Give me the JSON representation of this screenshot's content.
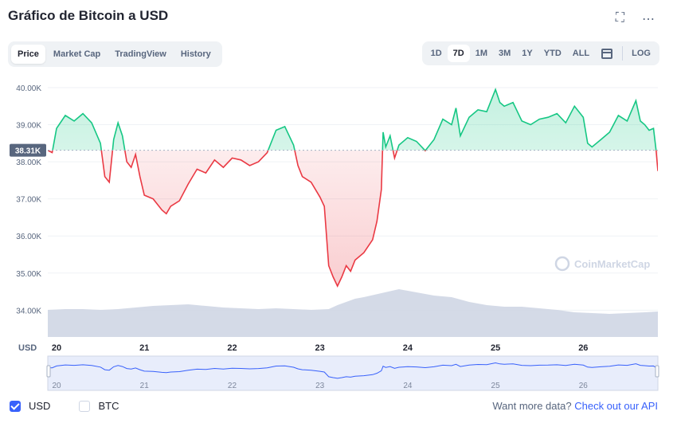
{
  "title": "Gráfico de Bitcoin a USD",
  "tabs": [
    "Price",
    "Market Cap",
    "TradingView",
    "History"
  ],
  "ranges": [
    "1D",
    "7D",
    "1M",
    "3M",
    "1Y",
    "YTD",
    "ALL"
  ],
  "log_label": "LOG",
  "icons": {
    "fullscreen": "fullscreen-icon",
    "more": "more-icon",
    "calendar": "calendar-icon"
  },
  "currency_label": "USD",
  "watermark": "CoinMarketCap",
  "legend": {
    "usd": "USD",
    "btc": "BTC"
  },
  "more_data": {
    "text": "Want more data?",
    "link": "Check out our API"
  },
  "colors": {
    "up": "#16c784",
    "down": "#ea3943",
    "accent": "#3861fb",
    "volume": "#cfd6e4"
  },
  "chart_data": {
    "type": "line",
    "reference_label": "38.31K",
    "reference_value": 38310,
    "ylim": [
      33600,
      40300
    ],
    "y_ticks": [
      "34.00K",
      "35.00K",
      "36.00K",
      "37.00K",
      "38.00K",
      "39.00K",
      "40.00K"
    ],
    "y_tick_values": [
      34000,
      35000,
      36000,
      37000,
      38000,
      39000,
      40000
    ],
    "x_ticks": [
      "20",
      "21",
      "22",
      "23",
      "24",
      "25",
      "26"
    ],
    "x_tick_positions": [
      0.5,
      1.5,
      2.5,
      3.5,
      4.5,
      5.5,
      6.5
    ],
    "x_range": [
      0.4,
      7.35
    ],
    "series": [
      {
        "values": [
          [
            0.4,
            38310
          ],
          [
            0.45,
            38250
          ],
          [
            0.5,
            38900
          ],
          [
            0.6,
            39250
          ],
          [
            0.7,
            39100
          ],
          [
            0.8,
            39300
          ],
          [
            0.9,
            39050
          ],
          [
            1.0,
            38500
          ],
          [
            1.05,
            37600
          ],
          [
            1.1,
            37450
          ],
          [
            1.15,
            38600
          ],
          [
            1.2,
            39050
          ],
          [
            1.25,
            38700
          ],
          [
            1.3,
            38000
          ],
          [
            1.35,
            37850
          ],
          [
            1.4,
            38200
          ],
          [
            1.45,
            37600
          ],
          [
            1.5,
            37100
          ],
          [
            1.6,
            37000
          ],
          [
            1.7,
            36700
          ],
          [
            1.75,
            36600
          ],
          [
            1.8,
            36800
          ],
          [
            1.9,
            36950
          ],
          [
            2.0,
            37400
          ],
          [
            2.1,
            37800
          ],
          [
            2.2,
            37700
          ],
          [
            2.3,
            38050
          ],
          [
            2.4,
            37850
          ],
          [
            2.5,
            38100
          ],
          [
            2.6,
            38050
          ],
          [
            2.7,
            37900
          ],
          [
            2.8,
            38000
          ],
          [
            2.9,
            38250
          ],
          [
            3.0,
            38850
          ],
          [
            3.1,
            38950
          ],
          [
            3.15,
            38700
          ],
          [
            3.2,
            38450
          ],
          [
            3.25,
            37900
          ],
          [
            3.3,
            37600
          ],
          [
            3.4,
            37450
          ],
          [
            3.5,
            37050
          ],
          [
            3.55,
            36800
          ],
          [
            3.6,
            35200
          ],
          [
            3.65,
            34900
          ],
          [
            3.7,
            34650
          ],
          [
            3.75,
            34900
          ],
          [
            3.8,
            35200
          ],
          [
            3.85,
            35050
          ],
          [
            3.9,
            35350
          ],
          [
            4.0,
            35550
          ],
          [
            4.1,
            35900
          ],
          [
            4.15,
            36400
          ],
          [
            4.2,
            37250
          ],
          [
            4.22,
            38800
          ],
          [
            4.25,
            38400
          ],
          [
            4.3,
            38700
          ],
          [
            4.35,
            38100
          ],
          [
            4.4,
            38450
          ],
          [
            4.5,
            38650
          ],
          [
            4.6,
            38550
          ],
          [
            4.7,
            38300
          ],
          [
            4.8,
            38600
          ],
          [
            4.9,
            39150
          ],
          [
            5.0,
            39000
          ],
          [
            5.05,
            39450
          ],
          [
            5.1,
            38700
          ],
          [
            5.2,
            39200
          ],
          [
            5.3,
            39400
          ],
          [
            5.4,
            39350
          ],
          [
            5.5,
            39950
          ],
          [
            5.55,
            39600
          ],
          [
            5.6,
            39500
          ],
          [
            5.7,
            39600
          ],
          [
            5.8,
            39100
          ],
          [
            5.9,
            39000
          ],
          [
            6.0,
            39150
          ],
          [
            6.1,
            39200
          ],
          [
            6.2,
            39300
          ],
          [
            6.3,
            39050
          ],
          [
            6.4,
            39500
          ],
          [
            6.5,
            39200
          ],
          [
            6.55,
            38500
          ],
          [
            6.6,
            38400
          ],
          [
            6.7,
            38600
          ],
          [
            6.8,
            38800
          ],
          [
            6.9,
            39250
          ],
          [
            7.0,
            39100
          ],
          [
            7.1,
            39650
          ],
          [
            7.15,
            39100
          ],
          [
            7.2,
            39000
          ],
          [
            7.25,
            38850
          ],
          [
            7.3,
            38900
          ],
          [
            7.33,
            38300
          ],
          [
            7.35,
            37750
          ]
        ]
      }
    ],
    "volume": [
      [
        0.4,
        34
      ],
      [
        0.6,
        35
      ],
      [
        0.8,
        35
      ],
      [
        1.0,
        34
      ],
      [
        1.2,
        35
      ],
      [
        1.4,
        37
      ],
      [
        1.6,
        39
      ],
      [
        1.8,
        40
      ],
      [
        2.0,
        41
      ],
      [
        2.2,
        39
      ],
      [
        2.4,
        37
      ],
      [
        2.6,
        36
      ],
      [
        2.8,
        35
      ],
      [
        3.0,
        36
      ],
      [
        3.2,
        35
      ],
      [
        3.4,
        34
      ],
      [
        3.6,
        35
      ],
      [
        3.7,
        40
      ],
      [
        3.9,
        48
      ],
      [
        4.0,
        50
      ],
      [
        4.2,
        55
      ],
      [
        4.4,
        60
      ],
      [
        4.6,
        56
      ],
      [
        4.8,
        52
      ],
      [
        5.0,
        50
      ],
      [
        5.2,
        44
      ],
      [
        5.4,
        40
      ],
      [
        5.6,
        38
      ],
      [
        5.8,
        38
      ],
      [
        6.0,
        36
      ],
      [
        6.2,
        34
      ],
      [
        6.4,
        31
      ],
      [
        6.6,
        30
      ],
      [
        6.8,
        29
      ],
      [
        7.0,
        30
      ],
      [
        7.2,
        31
      ],
      [
        7.35,
        32
      ]
    ]
  }
}
